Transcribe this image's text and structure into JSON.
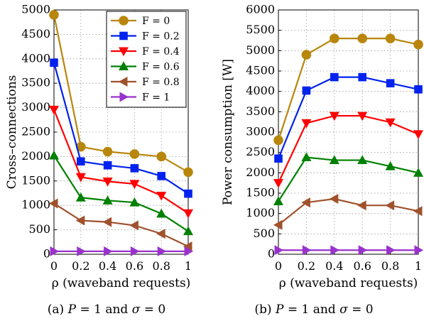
{
  "chart_data": [
    {
      "type": "line",
      "x": [
        0,
        0.2,
        0.4,
        0.6,
        0.8,
        1
      ],
      "xticks": [
        "0",
        "0.2",
        "0.4",
        "0.6",
        "0.8",
        "1"
      ],
      "yticks": [
        "0",
        "500",
        "1000",
        "1500",
        "2000",
        "2500",
        "3000",
        "3500",
        "4000",
        "4500",
        "5000"
      ],
      "xlim": [
        0,
        1
      ],
      "ylim": [
        0,
        5000
      ],
      "xlabel": "ρ  (waveband requests)",
      "ylabel": "Cross–connections",
      "caption": "(a) P = 1 and σ = 0",
      "grid": true,
      "legend_position": "top-right",
      "series": [
        {
          "name": "F = 0",
          "color": "#b8860b",
          "marker": "circle",
          "values": [
            4900,
            2200,
            2100,
            2050,
            2000,
            1680
          ]
        },
        {
          "name": "F = 0.2",
          "color": "#0022ee",
          "marker": "square",
          "values": [
            3920,
            1900,
            1820,
            1760,
            1600,
            1240
          ]
        },
        {
          "name": "F = 0.4",
          "color": "#ff0000",
          "marker": "triangle-down",
          "values": [
            2960,
            1580,
            1490,
            1440,
            1200,
            840
          ]
        },
        {
          "name": "F = 0.6",
          "color": "#008000",
          "marker": "triangle-up",
          "values": [
            2020,
            1160,
            1100,
            1060,
            830,
            470
          ]
        },
        {
          "name": "F = 0.8",
          "color": "#a0522d",
          "marker": "triangle-left",
          "values": [
            1040,
            690,
            660,
            590,
            420,
            160
          ]
        },
        {
          "name": "F = 1",
          "color": "#9932cc",
          "marker": "triangle-right",
          "values": [
            60,
            60,
            60,
            60,
            60,
            60
          ]
        }
      ]
    },
    {
      "type": "line",
      "x": [
        0,
        0.2,
        0.4,
        0.6,
        0.8,
        1
      ],
      "xticks": [
        "0",
        "0.2",
        "0.4",
        "0.6",
        "0.8",
        "1"
      ],
      "yticks": [
        "0",
        "500",
        "1000",
        "1500",
        "2000",
        "2500",
        "3000",
        "3500",
        "4000",
        "4500",
        "5000",
        "5500",
        "6000"
      ],
      "xlim": [
        0,
        1
      ],
      "ylim": [
        0,
        6000
      ],
      "xlabel": "ρ  (waveband requests)",
      "ylabel": "Power consumption [W]",
      "caption": "(b) P = 1 and σ = 0",
      "grid": true,
      "series": [
        {
          "name": "F = 0",
          "color": "#b8860b",
          "marker": "circle",
          "values": [
            2800,
            4900,
            5300,
            5300,
            5300,
            5150
          ]
        },
        {
          "name": "F = 0.2",
          "color": "#0022ee",
          "marker": "square",
          "values": [
            2350,
            4020,
            4350,
            4350,
            4200,
            4050
          ]
        },
        {
          "name": "F = 0.4",
          "color": "#ff0000",
          "marker": "triangle-down",
          "values": [
            1750,
            3220,
            3400,
            3400,
            3240,
            2950
          ]
        },
        {
          "name": "F = 0.6",
          "color": "#008000",
          "marker": "triangle-up",
          "values": [
            1300,
            2380,
            2310,
            2310,
            2160,
            2000
          ]
        },
        {
          "name": "F = 0.8",
          "color": "#a0522d",
          "marker": "triangle-left",
          "values": [
            720,
            1270,
            1360,
            1200,
            1200,
            1060
          ]
        },
        {
          "name": "F = 1",
          "color": "#9932cc",
          "marker": "triangle-right",
          "values": [
            100,
            100,
            100,
            100,
            100,
            100
          ]
        }
      ]
    }
  ]
}
